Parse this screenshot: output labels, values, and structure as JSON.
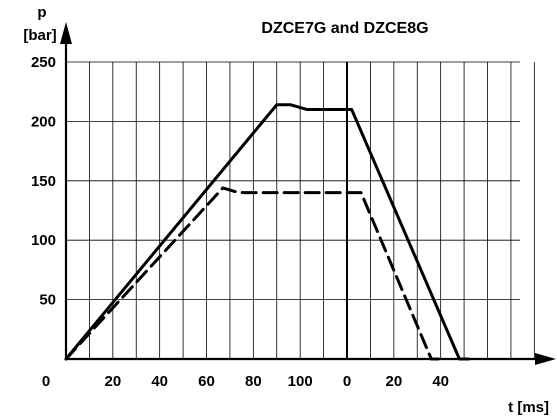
{
  "chart_data": {
    "type": "line",
    "title": "DZCE7G and DZCE8G",
    "ylabel": "p",
    "yunit": "[bar]",
    "xlabel": "t [ms]",
    "origin_label": "0",
    "ylim": [
      0,
      250
    ],
    "yticks": [
      50,
      100,
      150,
      200,
      250
    ],
    "xticks": [
      "20",
      "40",
      "60",
      "80",
      "100",
      "0",
      "20",
      "40"
    ],
    "x_segments": [
      {
        "range_ms": [
          0,
          120
        ]
      },
      {
        "range_ms": [
          0,
          90
        ]
      }
    ],
    "grid": true,
    "series": [
      {
        "style": "solid",
        "color": "#000000",
        "points": [
          {
            "segment": 0,
            "t": 0,
            "p": 0
          },
          {
            "segment": 0,
            "t": 90,
            "p": 214
          },
          {
            "segment": 0,
            "t": 96,
            "p": 214
          },
          {
            "segment": 0,
            "t": 103,
            "p": 210
          },
          {
            "segment": 1,
            "t": 2,
            "p": 210
          },
          {
            "segment": 1,
            "t": 48,
            "p": 0
          },
          {
            "segment": 1,
            "t": 52,
            "p": 0
          }
        ]
      },
      {
        "style": "dashed",
        "color": "#000000",
        "points": [
          {
            "segment": 0,
            "t": 0,
            "p": 0
          },
          {
            "segment": 0,
            "t": 67,
            "p": 144
          },
          {
            "segment": 0,
            "t": 72,
            "p": 141
          },
          {
            "segment": 0,
            "t": 76,
            "p": 140
          },
          {
            "segment": 1,
            "t": 6,
            "p": 140
          },
          {
            "segment": 1,
            "t": 36,
            "p": 0
          },
          {
            "segment": 1,
            "t": 39,
            "p": 0
          }
        ]
      }
    ]
  }
}
